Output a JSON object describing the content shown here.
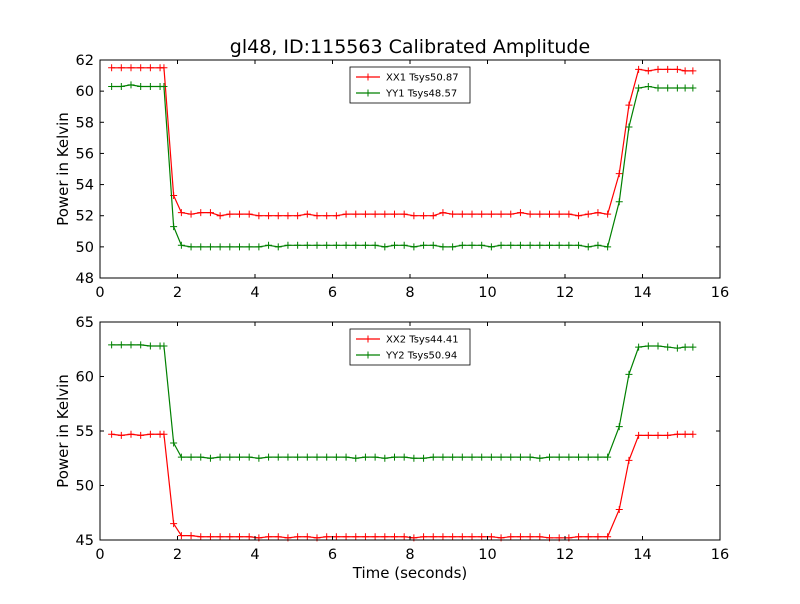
{
  "title": "gl48, ID:115563 Calibrated Amplitude",
  "xlabel": "Time (seconds)",
  "chart_data": [
    {
      "type": "line",
      "ylabel": "Power in Kelvin",
      "xlim": [
        0,
        16
      ],
      "ylim": [
        48,
        62
      ],
      "xticks": [
        0,
        2,
        4,
        6,
        8,
        10,
        12,
        14,
        16
      ],
      "yticks": [
        48,
        50,
        52,
        54,
        56,
        58,
        60,
        62
      ],
      "grid": false,
      "legend_position": "top-center",
      "x": [
        0.3,
        0.55,
        0.8,
        1.05,
        1.3,
        1.55,
        1.65,
        1.9,
        2.1,
        2.35,
        2.6,
        2.85,
        3.1,
        3.35,
        3.6,
        3.85,
        4.1,
        4.35,
        4.6,
        4.85,
        5.1,
        5.35,
        5.6,
        5.85,
        6.1,
        6.35,
        6.6,
        6.85,
        7.1,
        7.35,
        7.6,
        7.85,
        8.1,
        8.35,
        8.6,
        8.85,
        9.1,
        9.35,
        9.6,
        9.85,
        10.1,
        10.35,
        10.6,
        10.85,
        11.1,
        11.35,
        11.6,
        11.85,
        12.1,
        12.35,
        12.6,
        12.85,
        13.1,
        13.4,
        13.65,
        13.9,
        14.15,
        14.4,
        14.65,
        14.9,
        15.1,
        15.3
      ],
      "series": [
        {
          "name": "XX1 Tsys50.87",
          "color": "#ff0000",
          "values": [
            61.5,
            61.5,
            61.5,
            61.5,
            61.5,
            61.5,
            61.5,
            53.3,
            52.2,
            52.1,
            52.2,
            52.2,
            52.0,
            52.1,
            52.1,
            52.1,
            52.0,
            52.0,
            52.0,
            52.0,
            52.0,
            52.1,
            52.0,
            52.0,
            52.0,
            52.1,
            52.1,
            52.1,
            52.1,
            52.1,
            52.1,
            52.1,
            52.0,
            52.0,
            52.0,
            52.2,
            52.1,
            52.1,
            52.1,
            52.1,
            52.1,
            52.1,
            52.1,
            52.2,
            52.1,
            52.1,
            52.1,
            52.1,
            52.1,
            52.0,
            52.1,
            52.2,
            52.1,
            54.7,
            59.1,
            61.4,
            61.3,
            61.4,
            61.4,
            61.4,
            61.3,
            61.3
          ]
        },
        {
          "name": "YY1 Tsys48.57",
          "color": "#008000",
          "values": [
            60.3,
            60.3,
            60.4,
            60.3,
            60.3,
            60.3,
            60.3,
            51.3,
            50.1,
            50.0,
            50.0,
            50.0,
            50.0,
            50.0,
            50.0,
            50.0,
            50.0,
            50.1,
            50.0,
            50.1,
            50.1,
            50.1,
            50.1,
            50.1,
            50.1,
            50.1,
            50.1,
            50.1,
            50.1,
            50.0,
            50.1,
            50.1,
            50.0,
            50.1,
            50.1,
            50.0,
            50.0,
            50.1,
            50.1,
            50.1,
            50.0,
            50.1,
            50.1,
            50.1,
            50.1,
            50.1,
            50.1,
            50.1,
            50.1,
            50.1,
            50.0,
            50.1,
            50.0,
            52.9,
            57.7,
            60.2,
            60.3,
            60.2,
            60.2,
            60.2,
            60.2,
            60.2
          ]
        }
      ]
    },
    {
      "type": "line",
      "ylabel": "Power in Kelvin",
      "xlim": [
        0,
        16
      ],
      "ylim": [
        45,
        65
      ],
      "xticks": [
        0,
        2,
        4,
        6,
        8,
        10,
        12,
        14,
        16
      ],
      "yticks": [
        45,
        50,
        55,
        60,
        65
      ],
      "grid": false,
      "legend_position": "top-center",
      "x": [
        0.3,
        0.55,
        0.8,
        1.05,
        1.3,
        1.55,
        1.65,
        1.9,
        2.1,
        2.35,
        2.6,
        2.85,
        3.1,
        3.35,
        3.6,
        3.85,
        4.1,
        4.35,
        4.6,
        4.85,
        5.1,
        5.35,
        5.6,
        5.85,
        6.1,
        6.35,
        6.6,
        6.85,
        7.1,
        7.35,
        7.6,
        7.85,
        8.1,
        8.35,
        8.6,
        8.85,
        9.1,
        9.35,
        9.6,
        9.85,
        10.1,
        10.35,
        10.6,
        10.85,
        11.1,
        11.35,
        11.6,
        11.85,
        12.1,
        12.35,
        12.6,
        12.85,
        13.1,
        13.4,
        13.65,
        13.9,
        14.15,
        14.4,
        14.65,
        14.9,
        15.1,
        15.3
      ],
      "series": [
        {
          "name": "XX2 Tsys44.41",
          "color": "#ff0000",
          "values": [
            54.7,
            54.6,
            54.7,
            54.6,
            54.7,
            54.7,
            54.7,
            46.5,
            45.4,
            45.4,
            45.3,
            45.3,
            45.3,
            45.3,
            45.3,
            45.3,
            45.2,
            45.3,
            45.3,
            45.2,
            45.3,
            45.3,
            45.2,
            45.3,
            45.3,
            45.3,
            45.3,
            45.3,
            45.3,
            45.3,
            45.3,
            45.3,
            45.2,
            45.3,
            45.3,
            45.3,
            45.3,
            45.3,
            45.3,
            45.3,
            45.3,
            45.2,
            45.3,
            45.3,
            45.3,
            45.3,
            45.2,
            45.2,
            45.2,
            45.3,
            45.3,
            45.3,
            45.3,
            47.8,
            52.3,
            54.6,
            54.6,
            54.6,
            54.6,
            54.7,
            54.7,
            54.7
          ]
        },
        {
          "name": "YY2 Tsys50.94",
          "color": "#008000",
          "values": [
            62.9,
            62.9,
            62.9,
            62.9,
            62.8,
            62.8,
            62.8,
            53.9,
            52.6,
            52.6,
            52.6,
            52.5,
            52.6,
            52.6,
            52.6,
            52.6,
            52.5,
            52.6,
            52.6,
            52.6,
            52.6,
            52.6,
            52.6,
            52.6,
            52.6,
            52.6,
            52.5,
            52.6,
            52.6,
            52.5,
            52.6,
            52.6,
            52.5,
            52.5,
            52.6,
            52.6,
            52.6,
            52.6,
            52.6,
            52.6,
            52.6,
            52.6,
            52.6,
            52.6,
            52.6,
            52.5,
            52.6,
            52.6,
            52.6,
            52.6,
            52.6,
            52.6,
            52.6,
            55.4,
            60.2,
            62.7,
            62.8,
            62.8,
            62.7,
            62.6,
            62.7,
            62.7
          ]
        }
      ]
    }
  ]
}
